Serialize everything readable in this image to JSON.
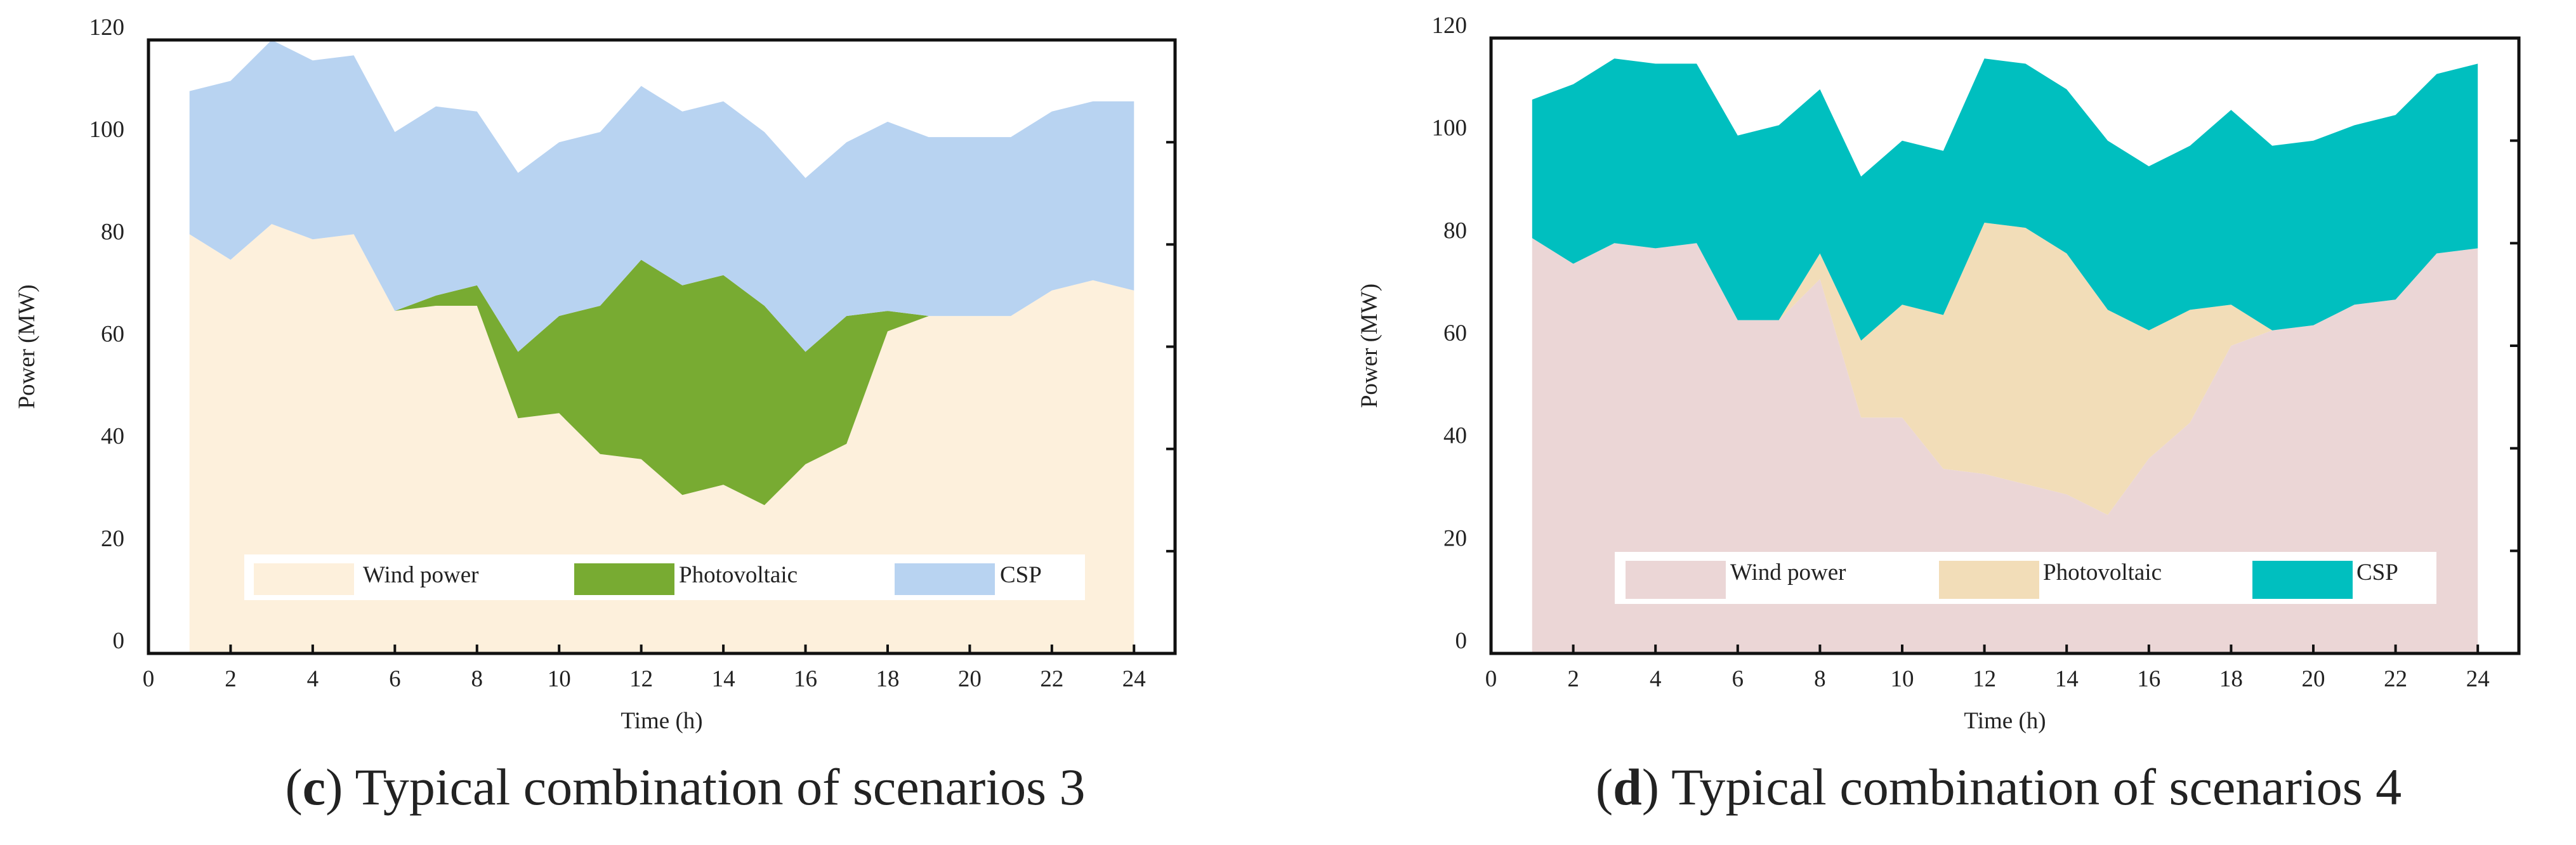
{
  "figure": {
    "panels": [
      {
        "caption_letter": "c",
        "caption_text": " Typical combination of scenarios 3",
        "legend_labels": [
          "Wind power",
          "Photovoltaic",
          "CSP"
        ]
      },
      {
        "caption_letter": "d",
        "caption_text": " Typical combination of scenarios 4",
        "legend_labels": [
          "Wind power",
          "Photovoltaic",
          "CSP"
        ]
      }
    ]
  },
  "chart_data": [
    {
      "type": "area",
      "stacked": true,
      "title": "(c) Typical combination of scenarios 3",
      "xlabel": "Time (h)",
      "ylabel": "Power (MW)",
      "xlim": [
        0,
        25
      ],
      "ylim": [
        0,
        120
      ],
      "xticks": [
        0,
        2,
        4,
        6,
        8,
        10,
        12,
        14,
        16,
        18,
        20,
        22,
        24
      ],
      "yticks": [
        0,
        20,
        40,
        60,
        80,
        100,
        120
      ],
      "grid": false,
      "legend_position": "bottom-inside",
      "x": [
        1,
        2,
        3,
        4,
        5,
        6,
        7,
        8,
        9,
        10,
        11,
        12,
        13,
        14,
        15,
        16,
        17,
        18,
        19,
        20,
        21,
        22,
        23,
        24
      ],
      "series": [
        {
          "name": "Wind power",
          "color": "#FDF0DC",
          "values": [
            82,
            77,
            84,
            81,
            82,
            67,
            68,
            68,
            46,
            47,
            39,
            38,
            31,
            33,
            29,
            37,
            41,
            63,
            66,
            66,
            66,
            71,
            73,
            71
          ]
        },
        {
          "name": "Photovoltaic",
          "color": "#78AB32",
          "values": [
            0,
            0,
            0,
            0,
            0,
            0,
            2,
            4,
            13,
            19,
            29,
            39,
            41,
            41,
            39,
            22,
            25,
            4,
            0,
            0,
            0,
            0,
            0,
            0
          ]
        },
        {
          "name": "CSP",
          "color": "#B8D3F1",
          "values": [
            28,
            35,
            36,
            35,
            35,
            35,
            37,
            34,
            35,
            34,
            34,
            34,
            34,
            34,
            34,
            34,
            34,
            37,
            35,
            35,
            35,
            35,
            35,
            37
          ]
        }
      ]
    },
    {
      "type": "area",
      "stacked": true,
      "title": "(d) Typical combination of scenarios 4",
      "xlabel": "Time (h)",
      "ylabel": "Power (MW)",
      "xlim": [
        0,
        25
      ],
      "ylim": [
        0,
        120
      ],
      "xticks": [
        0,
        2,
        4,
        6,
        8,
        10,
        12,
        14,
        16,
        18,
        20,
        22,
        24
      ],
      "yticks": [
        0,
        20,
        40,
        60,
        80,
        100,
        120
      ],
      "grid": false,
      "legend_position": "bottom-inside",
      "x": [
        1,
        2,
        3,
        4,
        5,
        6,
        7,
        8,
        9,
        10,
        11,
        12,
        13,
        14,
        15,
        16,
        17,
        18,
        19,
        20,
        21,
        22,
        23,
        24
      ],
      "series": [
        {
          "name": "Wind power",
          "color": "#EBD6D6",
          "values": [
            81,
            76,
            80,
            79,
            80,
            65,
            65,
            73,
            46,
            46,
            36,
            35,
            33,
            31,
            27,
            38,
            45,
            60,
            63,
            64,
            68,
            69,
            78,
            79
          ]
        },
        {
          "name": "Photovoltaic",
          "color": "#F2DDB8",
          "values": [
            0,
            0,
            0,
            0,
            0,
            0,
            0,
            5,
            15,
            22,
            30,
            49,
            50,
            47,
            40,
            25,
            22,
            8,
            0,
            0,
            0,
            0,
            0,
            0
          ]
        },
        {
          "name": "CSP",
          "color": "#00BFBF",
          "values": [
            27,
            35,
            36,
            36,
            35,
            36,
            38,
            32,
            32,
            32,
            32,
            32,
            32,
            32,
            33,
            32,
            32,
            38,
            36,
            36,
            35,
            36,
            35,
            36
          ]
        }
      ]
    }
  ]
}
